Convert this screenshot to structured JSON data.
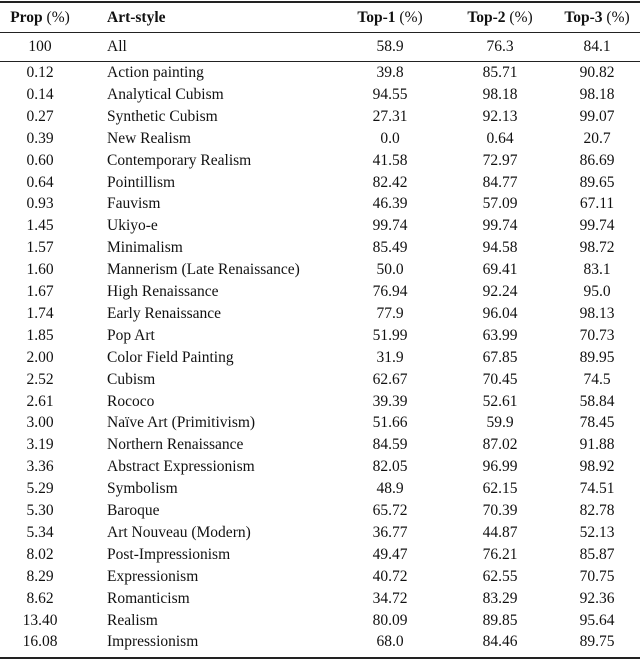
{
  "table": {
    "header": [
      {
        "label": "Prop",
        "unit": "(%)"
      },
      {
        "label": "Art-style"
      },
      {
        "label": "Top-1",
        "unit": "(%)"
      },
      {
        "label": "Top-2",
        "unit": "(%)"
      },
      {
        "label": "Top-3",
        "unit": "(%)"
      }
    ],
    "summary": [
      "100",
      "All",
      "58.9",
      "76.3",
      "84.1"
    ],
    "rows": [
      [
        "0.12",
        "Action painting",
        "39.8",
        "85.71",
        "90.82"
      ],
      [
        "0.14",
        "Analytical Cubism",
        "94.55",
        "98.18",
        "98.18"
      ],
      [
        "0.27",
        "Synthetic Cubism",
        "27.31",
        "92.13",
        "99.07"
      ],
      [
        "0.39",
        "New Realism",
        "0.0",
        "0.64",
        "20.7"
      ],
      [
        "0.60",
        "Contemporary Realism",
        "41.58",
        "72.97",
        "86.69"
      ],
      [
        "0.64",
        "Pointillism",
        "82.42",
        "84.77",
        "89.65"
      ],
      [
        "0.93",
        "Fauvism",
        "46.39",
        "57.09",
        "67.11"
      ],
      [
        "1.45",
        "Ukiyo-e",
        "99.74",
        "99.74",
        "99.74"
      ],
      [
        "1.57",
        "Minimalism",
        "85.49",
        "94.58",
        "98.72"
      ],
      [
        "1.60",
        "Mannerism (Late Renaissance)",
        "50.0",
        "69.41",
        "83.1"
      ],
      [
        "1.67",
        "High Renaissance",
        "76.94",
        "92.24",
        "95.0"
      ],
      [
        "1.74",
        "Early Renaissance",
        "77.9",
        "96.04",
        "98.13"
      ],
      [
        "1.85",
        "Pop Art",
        "51.99",
        "63.99",
        "70.73"
      ],
      [
        "2.00",
        "Color Field Painting",
        "31.9",
        "67.85",
        "89.95"
      ],
      [
        "2.52",
        "Cubism",
        "62.67",
        "70.45",
        "74.5"
      ],
      [
        "2.61",
        "Rococo",
        "39.39",
        "52.61",
        "58.84"
      ],
      [
        "3.00",
        "Naïve Art (Primitivism)",
        "51.66",
        "59.9",
        "78.45"
      ],
      [
        "3.19",
        "Northern Renaissance",
        "84.59",
        "87.02",
        "91.88"
      ],
      [
        "3.36",
        "Abstract Expressionism",
        "82.05",
        "96.99",
        "98.92"
      ],
      [
        "5.29",
        "Symbolism",
        "48.9",
        "62.15",
        "74.51"
      ],
      [
        "5.30",
        "Baroque",
        "65.72",
        "70.39",
        "82.78"
      ],
      [
        "5.34",
        "Art Nouveau (Modern)",
        "36.77",
        "44.87",
        "52.13"
      ],
      [
        "8.02",
        "Post-Impressionism",
        "49.47",
        "76.21",
        "85.87"
      ],
      [
        "8.29",
        "Expressionism",
        "40.72",
        "62.55",
        "70.75"
      ],
      [
        "8.62",
        "Romanticism",
        "34.72",
        "83.29",
        "92.36"
      ],
      [
        "13.40",
        "Realism",
        "80.09",
        "89.85",
        "95.64"
      ],
      [
        "16.08",
        "Impressionism",
        "68.0",
        "84.46",
        "89.75"
      ]
    ]
  }
}
